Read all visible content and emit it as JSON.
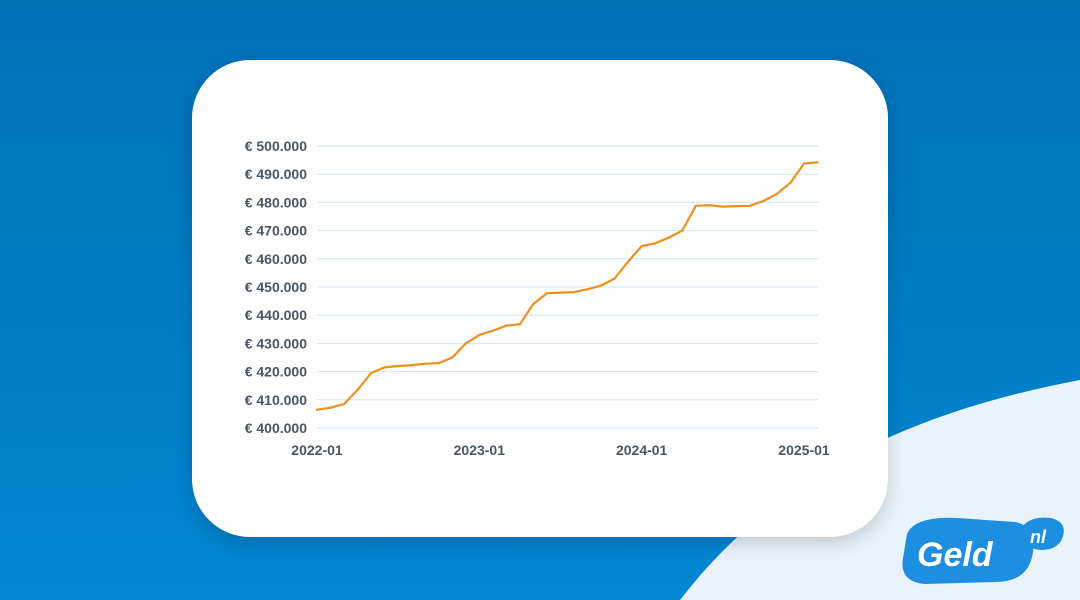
{
  "chart_data": {
    "type": "line",
    "title": "",
    "xlabel": "",
    "ylabel": "",
    "x_ticks": [
      "2022-01",
      "2023-01",
      "2024-01",
      "2025-01"
    ],
    "y_ticks": [
      "€ 400.000",
      "€ 410.000",
      "€ 420.000",
      "€ 430.000",
      "€ 440.000",
      "€ 450.000",
      "€ 460.000",
      "€ 470.000",
      "€ 480.000",
      "€ 490.000",
      "€ 500.000"
    ],
    "ylim": [
      400000,
      500000
    ],
    "xlim": [
      "2022-01",
      "2025-01"
    ],
    "grid": true,
    "legend": "none",
    "line_color": "#ef8f1f",
    "series": [
      {
        "x": [
          "2022-01",
          "2022-02",
          "2022-03",
          "2022-04",
          "2022-05",
          "2022-06",
          "2022-07",
          "2022-08",
          "2022-09",
          "2022-10",
          "2022-11",
          "2022-12",
          "2023-01",
          "2023-02",
          "2023-03",
          "2023-04",
          "2023-05",
          "2023-06",
          "2023-07",
          "2023-08",
          "2023-09",
          "2023-10",
          "2023-11",
          "2023-12",
          "2024-01",
          "2024-02",
          "2024-03",
          "2024-04",
          "2024-05",
          "2024-06",
          "2024-07",
          "2024-08",
          "2024-09",
          "2024-10",
          "2024-11",
          "2024-12",
          "2025-01",
          "2025-02"
        ],
        "y": [
          406500,
          407200,
          408500,
          413500,
          419500,
          421500,
          422000,
          422300,
          422800,
          423000,
          425000,
          430000,
          433000,
          434500,
          436300,
          436800,
          444000,
          447800,
          448000,
          448200,
          449200,
          450500,
          453000,
          459000,
          464500,
          465500,
          467500,
          470000,
          478800,
          479000,
          478500,
          478700,
          478800,
          480500,
          483000,
          487000,
          493800,
          494200
        ]
      }
    ]
  },
  "logo": {
    "brand": "Geld",
    "suffix": "nl",
    "color": "#1d8ee0"
  },
  "colors": {
    "background": "#0080c8",
    "light_curve": "#eaf3fb",
    "gridline": "#d3e2ee"
  }
}
